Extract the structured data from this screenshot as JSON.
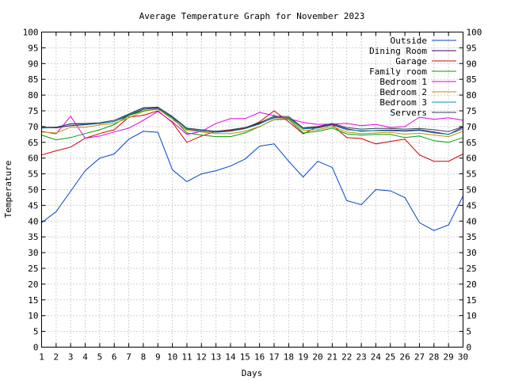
{
  "chart_data": {
    "type": "line",
    "title": "Average Temperature Graph for November 2023",
    "xlabel": "Days",
    "ylabel": "Temperature",
    "xlim": [
      1,
      30
    ],
    "ylim": [
      0,
      100
    ],
    "grid": true,
    "legend_position": "top-right",
    "x": [
      1,
      2,
      3,
      4,
      5,
      6,
      7,
      8,
      9,
      10,
      11,
      12,
      13,
      14,
      15,
      16,
      17,
      18,
      19,
      20,
      21,
      22,
      23,
      24,
      25,
      26,
      27,
      28,
      29,
      30
    ],
    "x_ticks": [
      1,
      2,
      3,
      4,
      5,
      6,
      7,
      8,
      9,
      10,
      11,
      12,
      13,
      14,
      15,
      16,
      17,
      18,
      19,
      20,
      21,
      22,
      23,
      24,
      25,
      26,
      27,
      28,
      29,
      30
    ],
    "y_ticks": [
      0,
      5,
      10,
      15,
      20,
      25,
      30,
      35,
      40,
      45,
      50,
      55,
      60,
      65,
      70,
      75,
      80,
      85,
      90,
      95,
      100
    ],
    "series": [
      {
        "name": "Outside",
        "color": "#0044cc",
        "values": [
          39.5,
          43,
          49.5,
          56,
          60,
          61.3,
          66,
          68.5,
          68.2,
          56.3,
          52.5,
          55,
          56,
          57.5,
          59.7,
          63.8,
          64.5,
          59,
          54,
          59,
          57,
          46.5,
          45.2,
          50,
          49.6,
          47.5,
          39.5,
          37,
          38.8,
          48
        ]
      },
      {
        "name": "Dining Room",
        "color": "#3d0066",
        "values": [
          69.7,
          69.6,
          70.3,
          70.6,
          71,
          71.6,
          73.5,
          75.5,
          75.8,
          73,
          69.2,
          68.6,
          68.3,
          68.8,
          69.5,
          71,
          72.8,
          72.8,
          69.5,
          69.8,
          70.7,
          69.3,
          68.5,
          68.8,
          68.9,
          68.7,
          69,
          68.3,
          67.5,
          69.8
        ]
      },
      {
        "name": "Garage",
        "color": "#d00000",
        "values": [
          61,
          62.3,
          63.5,
          66.3,
          67.8,
          69,
          73,
          73.6,
          75,
          71.3,
          65,
          67,
          68.5,
          68.8,
          69.5,
          71.5,
          75,
          71.5,
          67.7,
          70,
          70.5,
          66.5,
          66.2,
          64.5,
          65.3,
          66,
          61,
          59,
          59,
          61.3
        ]
      },
      {
        "name": "Family room",
        "color": "#00a000",
        "values": [
          67.3,
          65.8,
          66.5,
          67.8,
          69,
          70.6,
          73.5,
          75,
          75.5,
          72.8,
          68,
          67.3,
          66.8,
          66.8,
          68,
          70,
          72.2,
          72.3,
          68,
          68.5,
          69.5,
          67.7,
          67.3,
          67.5,
          67.5,
          66.5,
          67,
          65.5,
          65,
          66.5
        ]
      },
      {
        "name": "Bedroom 1",
        "color": "#e000e0",
        "values": [
          68.5,
          67.7,
          73.3,
          66.3,
          67,
          68.3,
          69.5,
          72,
          74.8,
          71.5,
          67.5,
          68.5,
          71,
          72.5,
          72.5,
          74.5,
          73.5,
          72.5,
          71.3,
          70.7,
          70.8,
          71,
          70.3,
          70.7,
          69.7,
          70,
          73,
          72.3,
          72.8,
          72
        ]
      },
      {
        "name": "Bedroom 2",
        "color": "#c09000",
        "values": [
          68.3,
          68,
          69.8,
          69.8,
          70.5,
          71,
          72.8,
          74.8,
          75.6,
          72.3,
          68.8,
          68.3,
          67.8,
          67.8,
          68.5,
          70,
          72.3,
          72.5,
          68.8,
          69,
          70,
          68.3,
          67.8,
          68,
          68.2,
          67.6,
          67.9,
          67.3,
          66.8,
          68.5
        ]
      },
      {
        "name": "Bedroom 3",
        "color": "#0090a8",
        "values": [
          69.5,
          69.8,
          70.8,
          70.8,
          71,
          71.6,
          73.8,
          75.9,
          76,
          72.8,
          69.3,
          68.7,
          68.2,
          68.5,
          69.3,
          70.8,
          73,
          72.8,
          69.3,
          69.5,
          70.5,
          69,
          68.7,
          68.7,
          68.7,
          68.5,
          68.8,
          68,
          67.5,
          69.3
        ]
      },
      {
        "name": "Servers",
        "color": "#304050",
        "values": [
          69.8,
          69.8,
          70.9,
          71,
          71.2,
          72,
          74,
          76,
          76.2,
          73.2,
          69.5,
          69,
          68.5,
          69,
          69.7,
          71.2,
          73.3,
          73.2,
          69.6,
          70,
          71,
          69.7,
          69.2,
          69.4,
          69.4,
          69.2,
          69.4,
          69,
          68.4,
          70
        ]
      }
    ]
  }
}
